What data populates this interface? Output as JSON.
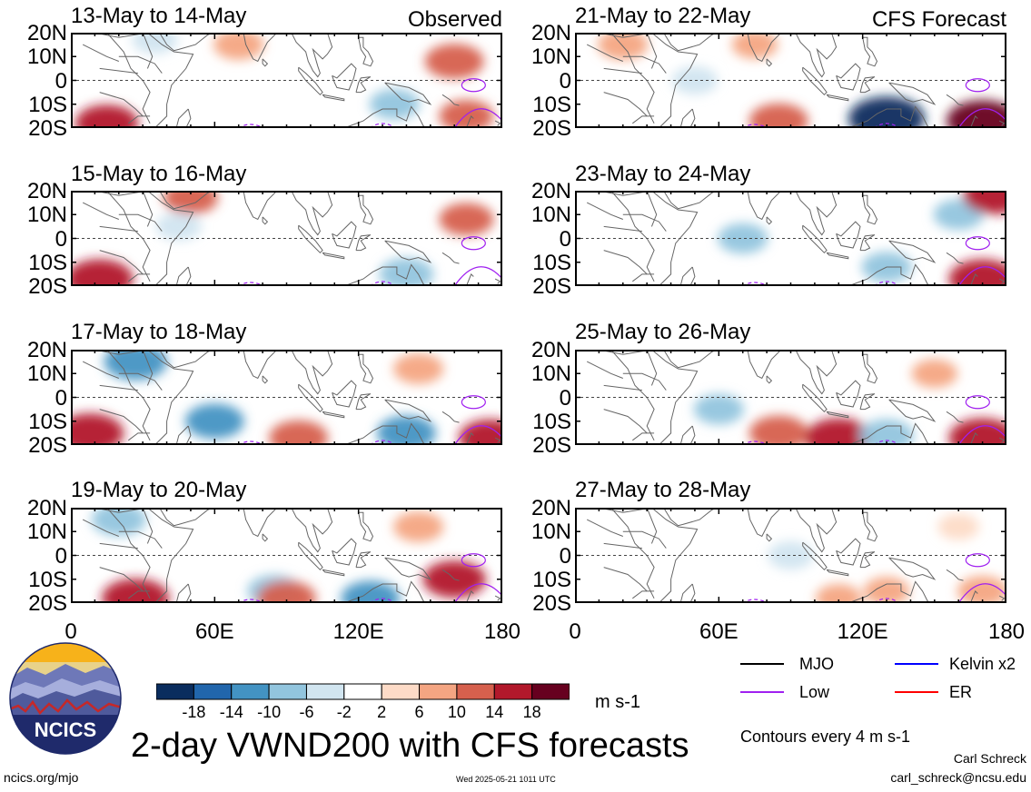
{
  "panels_left": {
    "tag": "Observed",
    "titles": [
      "13-May to 14-May",
      "15-May to 16-May",
      "17-May to 18-May",
      "19-May to 20-May"
    ]
  },
  "panels_right": {
    "tag": "CFS Forecast",
    "titles": [
      "21-May to 22-May",
      "23-May to 24-May",
      "25-May to 26-May",
      "27-May to 28-May"
    ]
  },
  "axes": {
    "lat_labels": [
      "20N",
      "10N",
      "0",
      "10S",
      "20S"
    ],
    "lon_labels": [
      "0",
      "60E",
      "120E",
      "180"
    ]
  },
  "legend": {
    "items": [
      {
        "label": "MJO",
        "color": "#000000"
      },
      {
        "label": "Kelvin x2",
        "color": "#0000ff"
      },
      {
        "label": "Low",
        "color": "#a020f0"
      },
      {
        "label": "ER",
        "color": "#ff0000"
      }
    ]
  },
  "colorbar": {
    "colors": [
      "#0a2d5e",
      "#2166ac",
      "#4393c3",
      "#92c5de",
      "#d1e5f0",
      "#ffffff",
      "#fddbc7",
      "#f4a582",
      "#d6604d",
      "#b2182b",
      "#67001f"
    ],
    "ticks": [
      "-18",
      "-14",
      "-10",
      "-6",
      "-2",
      "2",
      "6",
      "10",
      "14",
      "18"
    ],
    "unit": "m s-1"
  },
  "title": "2-day VWND200 with CFS forecasts",
  "contour_note": "Contours every 4 m s-1",
  "author": "Carl Schreck",
  "email": "carl_schreck@ncsu.edu",
  "url": "ncics.org/mjo",
  "timestamp": "Wed 2025-05-21 1011 UTC",
  "logo_text": "NCICS",
  "chart_data": [
    {
      "type": "heatmap",
      "title": "13-May to 14-May",
      "xlim": [
        0,
        180
      ],
      "ylim": [
        -20,
        20
      ],
      "variable": "VWND200",
      "units": "m s-1",
      "cells": [
        [
          15,
          -18,
          14
        ],
        [
          70,
          15,
          8
        ],
        [
          160,
          8,
          12
        ],
        [
          135,
          -10,
          -8
        ],
        [
          165,
          -15,
          10
        ],
        [
          35,
          17,
          -6
        ]
      ]
    },
    {
      "type": "heatmap",
      "title": "15-May to 16-May",
      "xlim": [
        0,
        180
      ],
      "ylim": [
        -20,
        20
      ],
      "variable": "VWND200",
      "units": "m s-1",
      "cells": [
        [
          12,
          -17,
          16
        ],
        [
          50,
          17,
          10
        ],
        [
          140,
          -15,
          -10
        ],
        [
          165,
          8,
          10
        ],
        [
          45,
          5,
          -6
        ]
      ]
    },
    {
      "type": "heatmap",
      "title": "17-May to 18-May",
      "xlim": [
        0,
        180
      ],
      "ylim": [
        -20,
        20
      ],
      "variable": "VWND200",
      "units": "m s-1",
      "cells": [
        [
          8,
          -15,
          16
        ],
        [
          27,
          15,
          -14
        ],
        [
          60,
          -10,
          -12
        ],
        [
          95,
          -17,
          12
        ],
        [
          140,
          -15,
          -12
        ],
        [
          145,
          12,
          8
        ],
        [
          175,
          -17,
          14
        ]
      ]
    },
    {
      "type": "heatmap",
      "title": "19-May to 20-May",
      "xlim": [
        0,
        180
      ],
      "ylim": [
        -20,
        20
      ],
      "variable": "VWND200",
      "units": "m s-1",
      "cells": [
        [
          20,
          15,
          -10
        ],
        [
          27,
          -18,
          16
        ],
        [
          85,
          -15,
          -10
        ],
        [
          90,
          -18,
          12
        ],
        [
          125,
          -18,
          -12
        ],
        [
          160,
          -10,
          14
        ],
        [
          145,
          12,
          8
        ]
      ]
    },
    {
      "type": "heatmap",
      "title": "21-May to 22-May",
      "xlim": [
        0,
        180
      ],
      "ylim": [
        -20,
        20
      ],
      "variable": "VWND200",
      "units": "m s-1",
      "cells": [
        [
          20,
          15,
          8
        ],
        [
          50,
          0,
          -6
        ],
        [
          85,
          -17,
          12
        ],
        [
          130,
          -16,
          -20
        ],
        [
          170,
          -17,
          18
        ],
        [
          75,
          15,
          6
        ]
      ]
    },
    {
      "type": "heatmap",
      "title": "23-May to 24-May",
      "xlim": [
        0,
        180
      ],
      "ylim": [
        -20,
        20
      ],
      "variable": "VWND200",
      "units": "m s-1",
      "cells": [
        [
          70,
          0,
          -8
        ],
        [
          160,
          10,
          -8
        ],
        [
          175,
          18,
          14
        ],
        [
          170,
          -17,
          16
        ],
        [
          130,
          -12,
          -8
        ]
      ]
    },
    {
      "type": "heatmap",
      "title": "25-May to 26-May",
      "xlim": [
        0,
        180
      ],
      "ylim": [
        -20,
        20
      ],
      "variable": "VWND200",
      "units": "m s-1",
      "cells": [
        [
          60,
          -5,
          -8
        ],
        [
          85,
          -15,
          12
        ],
        [
          110,
          -17,
          16
        ],
        [
          130,
          -16,
          -10
        ],
        [
          170,
          -17,
          16
        ],
        [
          150,
          10,
          6
        ]
      ]
    },
    {
      "type": "heatmap",
      "title": "27-May to 28-May",
      "xlim": [
        0,
        180
      ],
      "ylim": [
        -20,
        20
      ],
      "variable": "VWND200",
      "units": "m s-1",
      "cells": [
        [
          90,
          0,
          -6
        ],
        [
          130,
          -15,
          6
        ],
        [
          170,
          -15,
          8
        ],
        [
          110,
          -18,
          6
        ],
        [
          160,
          12,
          4
        ]
      ]
    }
  ]
}
